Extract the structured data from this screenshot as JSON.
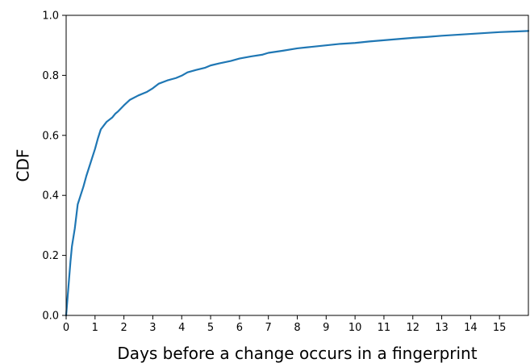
{
  "chart_data": {
    "type": "line",
    "title": "",
    "xlabel": "Days before a change occurs in a fingerprint",
    "ylabel": "CDF",
    "xlim": [
      0,
      16
    ],
    "ylim": [
      0.0,
      1.0
    ],
    "grid": false,
    "xticks": [
      0,
      1,
      2,
      3,
      4,
      5,
      6,
      7,
      8,
      9,
      10,
      11,
      12,
      13,
      14,
      15
    ],
    "xtick_labels": [
      "0",
      "1",
      "2",
      "3",
      "4",
      "5",
      "6",
      "7",
      "8",
      "9",
      "10",
      "11",
      "12",
      "13",
      "14",
      "15"
    ],
    "yticks": [
      0.0,
      0.2,
      0.4,
      0.6,
      0.8,
      1.0
    ],
    "ytick_labels": [
      "0.0",
      "0.2",
      "0.4",
      "0.6",
      "0.8",
      "1.0"
    ],
    "series": [
      {
        "color": "#1f77b4",
        "x": [
          0,
          0.05,
          0.1,
          0.15,
          0.2,
          0.3,
          0.4,
          0.5,
          0.6,
          0.7,
          0.8,
          0.9,
          1.0,
          1.1,
          1.2,
          1.4,
          1.6,
          1.7,
          1.8,
          2.0,
          2.2,
          2.5,
          2.8,
          3.0,
          3.2,
          3.5,
          3.8,
          4.0,
          4.2,
          4.5,
          4.8,
          5.0,
          5.3,
          5.7,
          6.0,
          6.4,
          6.8,
          7.0,
          7.5,
          8.0,
          8.5,
          9.0,
          9.5,
          10.0,
          10.5,
          11.0,
          11.5,
          12.0,
          12.5,
          13.0,
          13.5,
          14.0,
          14.5,
          15.0,
          15.5,
          16.0
        ],
        "y": [
          0.0,
          0.06,
          0.12,
          0.18,
          0.23,
          0.29,
          0.37,
          0.4,
          0.43,
          0.465,
          0.495,
          0.525,
          0.555,
          0.59,
          0.62,
          0.645,
          0.66,
          0.672,
          0.68,
          0.7,
          0.718,
          0.733,
          0.745,
          0.757,
          0.772,
          0.783,
          0.791,
          0.799,
          0.81,
          0.818,
          0.825,
          0.833,
          0.84,
          0.848,
          0.856,
          0.863,
          0.869,
          0.875,
          0.882,
          0.89,
          0.895,
          0.9,
          0.905,
          0.908,
          0.913,
          0.917,
          0.921,
          0.925,
          0.928,
          0.932,
          0.935,
          0.938,
          0.941,
          0.944,
          0.946,
          0.948
        ]
      }
    ]
  }
}
